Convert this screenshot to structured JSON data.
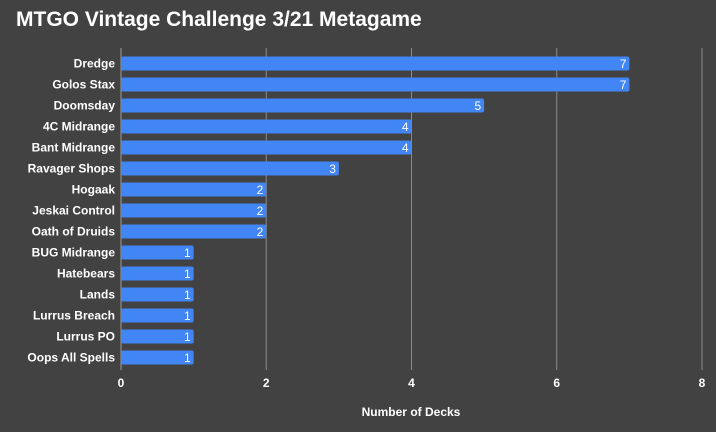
{
  "chart_data": {
    "type": "bar",
    "orientation": "horizontal",
    "title": "MTGO Vintage Challenge 3/21 Metagame",
    "xlabel": "Number of Decks",
    "ylabel": "",
    "categories": [
      "Dredge",
      "Golos Stax",
      "Doomsday",
      "4C Midrange",
      "Bant Midrange",
      "Ravager Shops",
      "Hogaak",
      "Jeskai Control",
      "Oath of Druids",
      "BUG Midrange",
      "Hatebears",
      "Lands",
      "Lurrus Breach",
      "Lurrus PO",
      "Oops All Spells"
    ],
    "values": [
      7,
      7,
      5,
      4,
      4,
      3,
      2,
      2,
      2,
      1,
      1,
      1,
      1,
      1,
      1
    ],
    "xlim": [
      0,
      8
    ],
    "xticks": [
      0,
      2,
      4,
      6,
      8
    ],
    "grid": true,
    "data_labels": true,
    "legend": "none",
    "colors": {
      "background": "#424242",
      "bar": "#4285f4",
      "gridline": "#8a8a8a",
      "text": "#ffffff"
    }
  }
}
